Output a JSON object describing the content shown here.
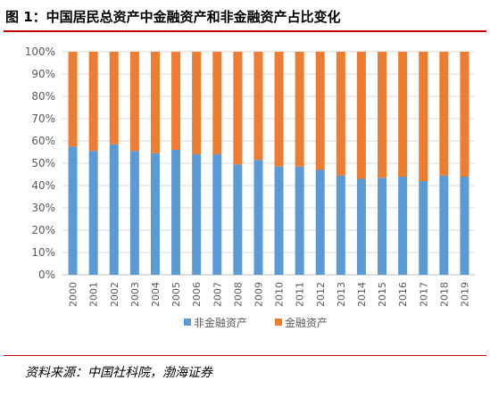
{
  "title": "图 1：中国居民总资产中金融资产和非金融资产占比变化",
  "source": "资料来源：中国社科院，渤海证券",
  "colors": {
    "non_financial": "#5b9bd5",
    "financial": "#ed7d31",
    "rule": "#c00000"
  },
  "chart_data": {
    "type": "bar",
    "stacked": true,
    "percent_stacked": true,
    "categories": [
      "2000",
      "2001",
      "2002",
      "2003",
      "2004",
      "2005",
      "2006",
      "2007",
      "2008",
      "2009",
      "2010",
      "2011",
      "2012",
      "2013",
      "2014",
      "2015",
      "2016",
      "2017",
      "2018",
      "2019"
    ],
    "series": [
      {
        "name": "非金融资产",
        "color": "#5b9bd5",
        "values": [
          57.5,
          55.5,
          58.5,
          55.5,
          54.5,
          56,
          54,
          54,
          49.5,
          51.5,
          48.5,
          48.5,
          47,
          44.5,
          43,
          43.5,
          44,
          42,
          44.5,
          44
        ]
      },
      {
        "name": "金融资产",
        "color": "#ed7d31",
        "values": [
          42.5,
          44.5,
          41.5,
          44.5,
          45.5,
          44,
          46,
          46,
          50.5,
          48.5,
          51.5,
          51.5,
          53,
          55.5,
          57,
          56.5,
          56,
          58,
          55.5,
          56
        ]
      }
    ],
    "y_ticks": [
      "0%",
      "10%",
      "20%",
      "30%",
      "40%",
      "50%",
      "60%",
      "70%",
      "80%",
      "90%",
      "100%"
    ],
    "ylim": [
      0,
      100
    ],
    "x_label_rotation": -90,
    "grid": true,
    "legend_position": "bottom"
  }
}
